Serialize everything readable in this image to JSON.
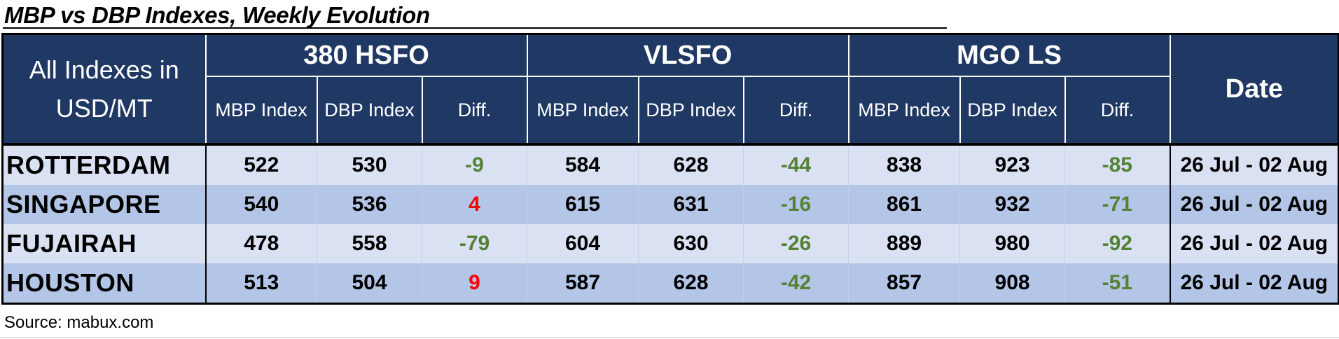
{
  "title": "MBP vs DBP Indexes, Weekly Evolution",
  "corner_label": "All Indexes in USD/MT",
  "groups": [
    "380 HSFO",
    "VLSFO",
    "MGO LS"
  ],
  "date_header": "Date",
  "sub_headers": [
    "MBP Index",
    "DBP Index",
    "Diff."
  ],
  "rows": [
    {
      "port": "ROTTERDAM",
      "hsfo": [
        "522",
        "530",
        "-9"
      ],
      "vlsfo": [
        "584",
        "628",
        "-44"
      ],
      "mgo": [
        "838",
        "923",
        "-85"
      ],
      "date": "26 Jul - 02 Aug"
    },
    {
      "port": "SINGAPORE",
      "hsfo": [
        "540",
        "536",
        "4"
      ],
      "vlsfo": [
        "615",
        "631",
        "-16"
      ],
      "mgo": [
        "861",
        "932",
        "-71"
      ],
      "date": "26 Jul - 02 Aug"
    },
    {
      "port": "FUJAIRAH",
      "hsfo": [
        "478",
        "558",
        "-79"
      ],
      "vlsfo": [
        "604",
        "630",
        "-26"
      ],
      "mgo": [
        "889",
        "980",
        "-92"
      ],
      "date": "26 Jul - 02 Aug"
    },
    {
      "port": "HOUSTON",
      "hsfo": [
        "513",
        "504",
        "9"
      ],
      "vlsfo": [
        "587",
        "628",
        "-42"
      ],
      "mgo": [
        "857",
        "908",
        "-51"
      ],
      "date": "26 Jul - 02 Aug"
    }
  ],
  "source": "Source: mabux.com",
  "colors": {
    "header_bg": "#203864",
    "row_light": "#d9e1f2",
    "row_dark": "#b4c6e7",
    "negative_diff": "#548235",
    "positive_diff": "#ff0000"
  }
}
